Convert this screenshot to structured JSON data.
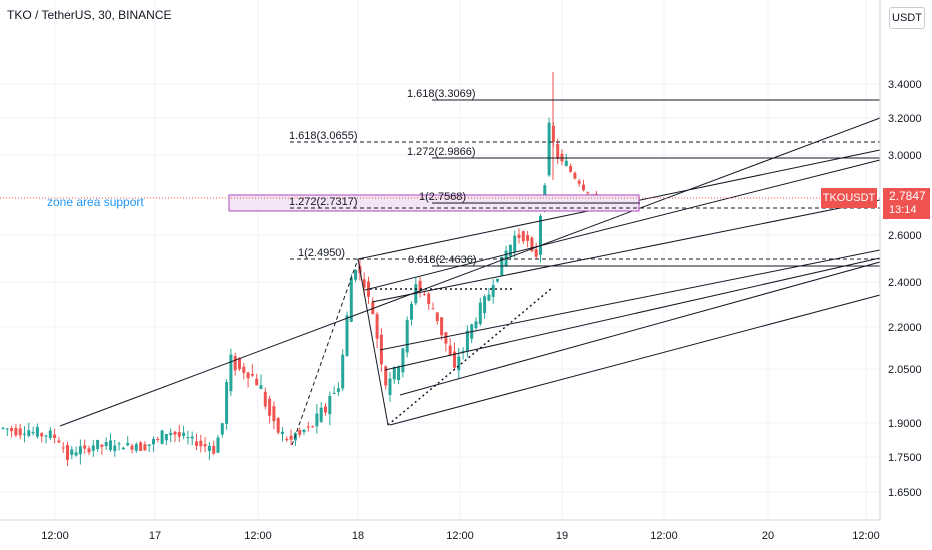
{
  "header": {
    "title": "TKO / TetherUS, 30, BINANCE",
    "currency": "USDT"
  },
  "zone_label": "zone area support",
  "price_tag": {
    "symbol": "TKOUSDT",
    "price": "2.7847",
    "countdown": "13:14",
    "color": "#ef5350"
  },
  "colors": {
    "up": "#26a69a",
    "down": "#ef5350",
    "zone_fill": "#f3e5f5",
    "zone_border": "#ab47bc",
    "label": "#2196f3"
  },
  "chart_data": {
    "type": "candlestick",
    "y_ticks": [
      "3.4000",
      "3.2000",
      "3.0000",
      "2.6000",
      "2.4000",
      "2.2000",
      "2.0500",
      "1.9000",
      "1.7500",
      "1.6500"
    ],
    "x_ticks": [
      "12:00",
      "17",
      "12:00",
      "18",
      "12:00",
      "19",
      "12:00",
      "20",
      "12:00"
    ],
    "fib_labels": [
      {
        "text": "1.618(3.3069)",
        "value": 3.3069
      },
      {
        "text": "1.618(3.0655)",
        "value": 3.0655
      },
      {
        "text": "1.272(2.9866)",
        "value": 2.9866
      },
      {
        "text": "1(2.7568)",
        "value": 2.7568
      },
      {
        "text": "1.272(2.7317)",
        "value": 2.7317
      },
      {
        "text": "1(2.4950)",
        "value": 2.495
      },
      {
        "text": "0.618(2.4636)",
        "value": 2.4636
      }
    ],
    "last_price": 2.7847,
    "annotations": [
      "zone area support"
    ]
  }
}
